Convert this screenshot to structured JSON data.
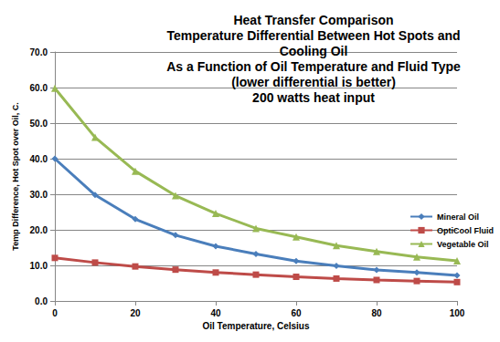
{
  "chart_data": {
    "type": "line",
    "title": "Heat Transfer Comparison\nTemperature Differential Between Hot Spots and\nCooling Oil\nAs a Function of Oil Temperature and Fluid Type\n(lower differential is better)\n200 watts heat input",
    "x_label": "Oil Temperature, Celsius",
    "y_label": "Temp Difference, Hot Spot over Oil, C.",
    "x": [
      0,
      10,
      20,
      30,
      40,
      50,
      60,
      70,
      80,
      90,
      100
    ],
    "series": [
      {
        "name": "Mineral Oil",
        "color": "#4a7ebb",
        "marker": "diamond",
        "values": [
          40.0,
          29.8,
          23.0,
          18.5,
          15.4,
          13.2,
          11.2,
          9.9,
          8.7,
          8.0,
          7.2
        ]
      },
      {
        "name": "OptiCool Fluid",
        "color": "#be4b48",
        "marker": "square",
        "values": [
          12.1,
          10.8,
          9.7,
          8.8,
          8.0,
          7.4,
          6.8,
          6.3,
          5.9,
          5.6,
          5.3
        ]
      },
      {
        "name": "Vegetable Oil",
        "color": "#98b954",
        "marker": "triangle",
        "values": [
          59.8,
          46.0,
          36.5,
          29.6,
          24.6,
          20.4,
          18.0,
          15.6,
          13.9,
          12.4,
          11.3
        ]
      }
    ],
    "xlim": [
      0,
      100
    ],
    "xticks": [
      0,
      20,
      40,
      60,
      80,
      100
    ],
    "ylim": [
      0,
      70
    ],
    "yticks": [
      {
        "value": 0,
        "label": "0.0"
      },
      {
        "value": 10,
        "label": "10.0"
      },
      {
        "value": 20,
        "label": "20.0"
      },
      {
        "value": 30,
        "label": "30.0"
      },
      {
        "value": 40,
        "label": "40.0"
      },
      {
        "value": 50,
        "label": "50.0"
      },
      {
        "value": 60,
        "label": "60.0"
      },
      {
        "value": 70,
        "label": "70.0"
      }
    ],
    "grid": true,
    "legend": "right"
  }
}
